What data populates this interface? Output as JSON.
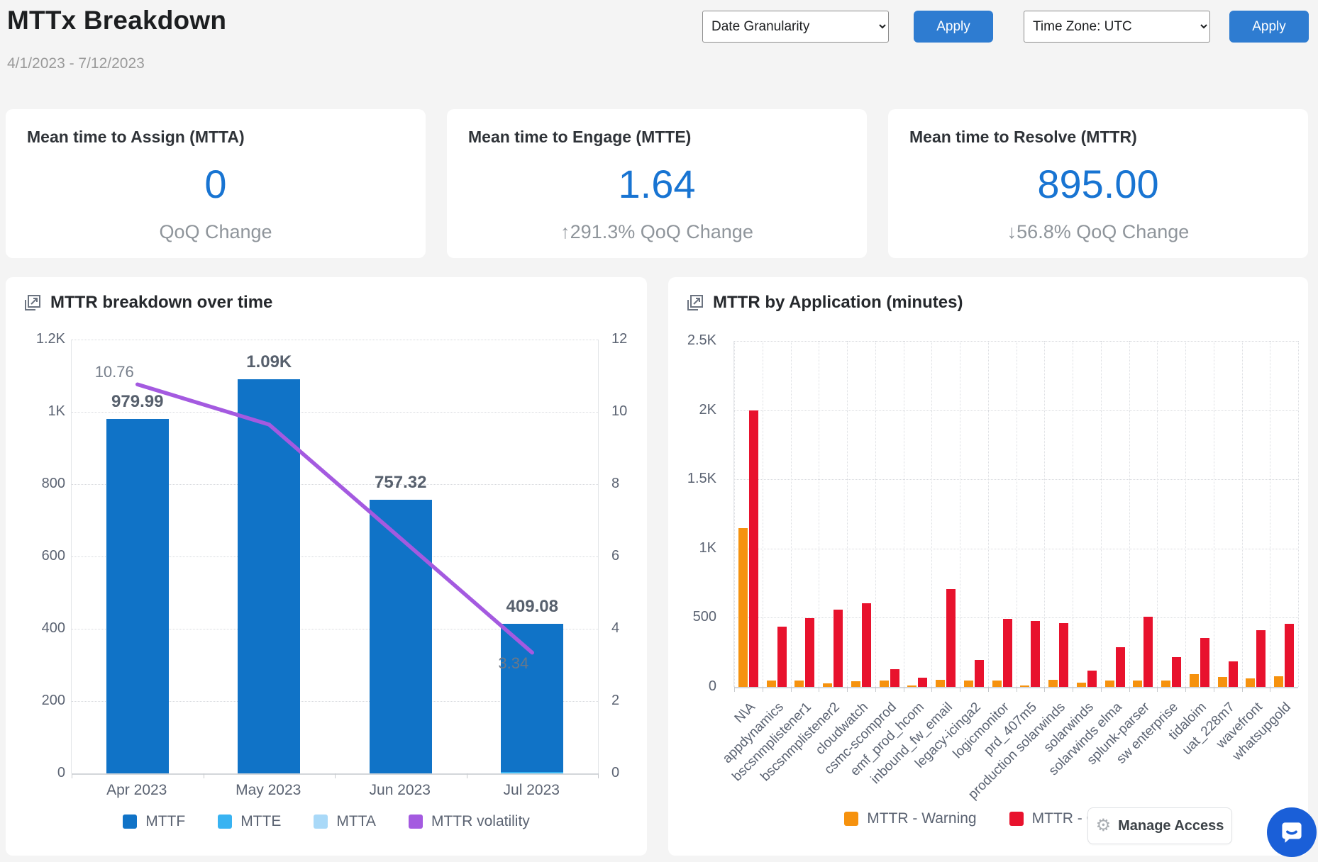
{
  "page": {
    "title": "MTTx Breakdown",
    "date_range": "4/1/2023 - 7/12/2023"
  },
  "controls": {
    "apply_label": "Apply",
    "date_granularity": {
      "value": "Date Granularity"
    },
    "time_zone": {
      "value": "Time Zone: UTC"
    }
  },
  "kpis": [
    {
      "title": "Mean time to Assign (MTTA)",
      "value": "0",
      "change": "QoQ Change"
    },
    {
      "title": "Mean time to Engage (MTTE)",
      "value": "1.64",
      "change": "↑291.3% QoQ Change"
    },
    {
      "title": "Mean time to Resolve (MTTR)",
      "value": "895.00",
      "change": "↓56.8% QoQ Change"
    }
  ],
  "manage_access": {
    "label": "Manage Access",
    "icon": "gear-icon"
  },
  "colors": {
    "accent_blue": "#1874d2",
    "button_blue": "#2e7cd1",
    "bar_blue": "#1073c7",
    "light_blue": "#38b3f2",
    "pale_blue": "#a9d9f8",
    "purple": "#a45ae0",
    "orange": "#f6920e",
    "red": "#e8122d",
    "axis_text": "#5b6372",
    "page_bg": "#f4f4f4"
  },
  "chart_data": [
    {
      "type": "bar",
      "subtype": "stacked-bar-plus-line-dual-axis",
      "title": "MTTR breakdown over time",
      "categories": [
        "Apr 2023",
        "May 2023",
        "Jun 2023",
        "Jul 2023"
      ],
      "series": [
        {
          "name": "MTTF",
          "type": "bar",
          "color": "#1073c7",
          "values": [
            979.99,
            1090,
            757.32,
            409.08
          ],
          "value_labels": [
            "979.99",
            "1.09K",
            "757.32",
            "409.08"
          ]
        },
        {
          "name": "MTTE",
          "type": "bar",
          "color": "#38b3f2",
          "values": [
            0,
            0,
            0,
            1.64
          ]
        },
        {
          "name": "MTTA",
          "type": "bar",
          "color": "#a9d9f8",
          "values": [
            0,
            0,
            0,
            0
          ]
        },
        {
          "name": "MTTR volatility",
          "type": "line",
          "axis": "right",
          "color": "#a45ae0",
          "values": [
            10.76,
            9.65,
            6.5,
            3.34
          ],
          "point_labels": [
            "10.76",
            "",
            "",
            "3.34"
          ]
        }
      ],
      "y_left": {
        "min": 0,
        "max": 1200,
        "ticks": [
          "1.2K",
          "1K",
          "800",
          "600",
          "400",
          "200",
          "0"
        ]
      },
      "y_right": {
        "min": 0,
        "max": 12,
        "ticks": [
          "12",
          "10",
          "8",
          "6",
          "4",
          "2",
          "0"
        ]
      },
      "legend_position": "bottom",
      "grid": "dotted-horizontal"
    },
    {
      "type": "bar",
      "title": "MTTR by Application (minutes)",
      "categories": [
        "N\\A",
        "appdynamics",
        "bscsnmplistener1",
        "bscsnmplistener2",
        "cloudwatch",
        "csmc-scomprod",
        "emf_prod_hcom",
        "inbound_fw_email",
        "legacy-icinga2",
        "logicmonitor",
        "prd_407m5",
        "production solarwinds",
        "solarwinds",
        "solarwinds elma",
        "splunk-parser",
        "sw enterprise",
        "tidaloim",
        "uat_228m7",
        "wavefront",
        "whatsupgold"
      ],
      "series": [
        {
          "name": "MTTR - Warning",
          "color": "#f6920e",
          "values": [
            1150,
            45,
            48,
            28,
            40,
            45,
            5,
            50,
            45,
            45,
            8,
            50,
            30,
            45,
            45,
            45,
            90,
            70,
            60,
            75
          ]
        },
        {
          "name": "MTTR - Critical",
          "color": "#e8122d",
          "values": [
            2000,
            435,
            495,
            560,
            605,
            130,
            65,
            705,
            195,
            490,
            475,
            460,
            120,
            285,
            505,
            215,
            355,
            185,
            410,
            455
          ]
        }
      ],
      "ylim": [
        0,
        2500
      ],
      "yticks": [
        "2.5K",
        "2K",
        "1.5K",
        "1K",
        "500",
        "0"
      ],
      "legend_position": "bottom",
      "grid": "dotted"
    }
  ]
}
